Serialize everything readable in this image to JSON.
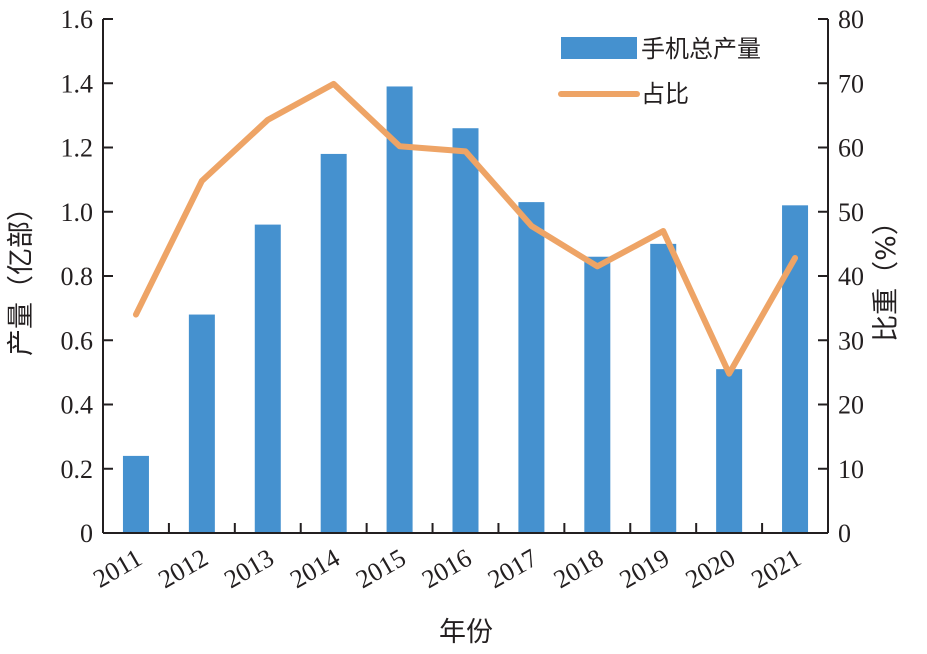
{
  "chart_data": {
    "type": "bar",
    "categories": [
      "2011",
      "2012",
      "2013",
      "2014",
      "2015",
      "2016",
      "2017",
      "2018",
      "2019",
      "2020",
      "2021"
    ],
    "series": [
      {
        "name": "手机总产量",
        "type": "bar",
        "axis": "left",
        "color": "#4591cf",
        "values": [
          0.24,
          0.68,
          0.96,
          1.18,
          1.39,
          1.26,
          1.03,
          0.86,
          0.9,
          0.51,
          1.02
        ]
      },
      {
        "name": "占比",
        "type": "line",
        "axis": "right",
        "color": "#eea466",
        "values": [
          34,
          54.8,
          64.3,
          69.9,
          60.2,
          59.4,
          47.8,
          41.5,
          47,
          24.8,
          42.8
        ]
      }
    ],
    "xlabel": "年份",
    "ylabel_left": "产量（亿部）",
    "ylabel_right": "比重（%）",
    "ylim_left": [
      0,
      1.6
    ],
    "ylim_right": [
      0,
      80
    ],
    "yticks_left": [
      "0",
      "0.2",
      "0.4",
      "0.6",
      "0.8",
      "1.0",
      "1.2",
      "1.4",
      "1.6"
    ],
    "yticks_right": [
      "0",
      "10",
      "20",
      "30",
      "40",
      "50",
      "60",
      "70",
      "80"
    ],
    "grid": false,
    "legend_position": "top-right"
  }
}
